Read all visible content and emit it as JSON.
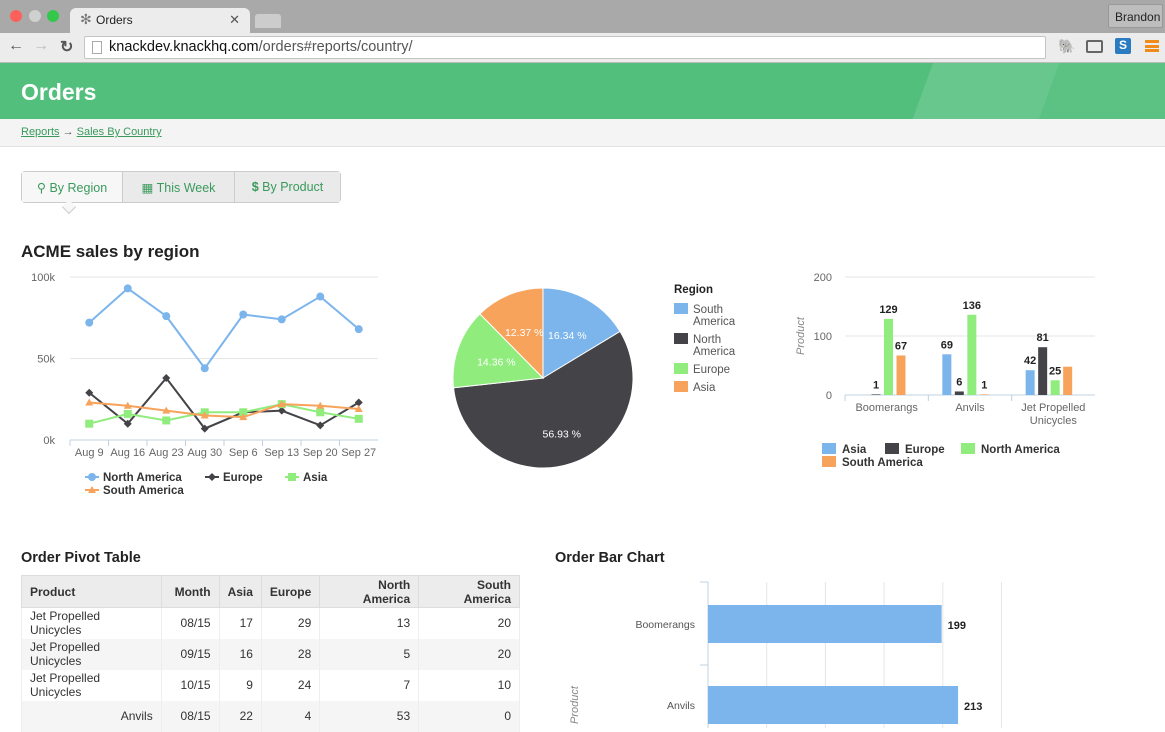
{
  "browser": {
    "tab_title": "Orders",
    "user": "Brandon",
    "url_host": "knackdev.knackhq.com",
    "url_path": "/orders#reports/country/"
  },
  "page": {
    "title": "Orders"
  },
  "breadcrumb": {
    "items": [
      "Reports",
      "Sales By Country"
    ],
    "separator": "→"
  },
  "view_tabs": [
    {
      "label": "By Region",
      "icon": "map-marker-icon",
      "active": true
    },
    {
      "label": "This Week",
      "icon": "calendar-icon"
    },
    {
      "label": "By Product",
      "icon": "dollar-icon"
    }
  ],
  "section1": {
    "title": "ACME sales by region"
  },
  "section2": {
    "pivot_title": "Order Pivot Table",
    "bar_title": "Order Bar Chart"
  },
  "colors": {
    "north_america": "#7cb5ec",
    "europe": "#434348",
    "asia": "#90ed7d",
    "south_america": "#f7a35c",
    "brand": "#52bf7d"
  },
  "chart_data": [
    {
      "type": "line",
      "categories": [
        "Aug 9",
        "Aug 16",
        "Aug 23",
        "Aug 30",
        "Sep 6",
        "Sep 13",
        "Sep 20",
        "Sep 27"
      ],
      "yticks": [
        "0k",
        "50k",
        "100k"
      ],
      "ylim": [
        0,
        100000
      ],
      "grid": true,
      "legend": "bottom",
      "series": [
        {
          "name": "North America",
          "color": "#7cb5ec",
          "marker": "circle",
          "values": [
            72000,
            93000,
            76000,
            44000,
            77000,
            74000,
            88000,
            68000
          ]
        },
        {
          "name": "Europe",
          "color": "#434348",
          "marker": "diamond",
          "values": [
            29000,
            10000,
            38000,
            7000,
            17000,
            18000,
            9000,
            23000
          ]
        },
        {
          "name": "Asia",
          "color": "#90ed7d",
          "marker": "square",
          "values": [
            10000,
            16000,
            12000,
            17000,
            17000,
            22000,
            17000,
            13000
          ]
        },
        {
          "name": "South America",
          "color": "#f7a35c",
          "marker": "triangle",
          "values": [
            23000,
            21000,
            18000,
            15000,
            14000,
            22000,
            21000,
            19000
          ]
        }
      ]
    },
    {
      "type": "pie",
      "legend_title": "Region",
      "legend": "right",
      "slices": [
        {
          "name": "South America",
          "value": 16.34,
          "label": "16.34 %",
          "color": "#7cb5ec"
        },
        {
          "name": "North America",
          "value": 56.93,
          "label": "56.93 %",
          "color": "#434348"
        },
        {
          "name": "Europe",
          "value": 14.36,
          "label": "14.36 %",
          "color": "#90ed7d"
        },
        {
          "name": "Asia",
          "value": 12.37,
          "label": "12.37 %",
          "color": "#f7a35c"
        }
      ]
    },
    {
      "type": "bar",
      "categories": [
        "Boomerangs",
        "Anvils",
        "Jet Propelled Unicycles"
      ],
      "ylabel": "Product",
      "ylim": [
        0,
        200
      ],
      "yticks": [
        "0",
        "100",
        "200"
      ],
      "legend": "bottom",
      "series": [
        {
          "name": "Asia",
          "color": "#7cb5ec",
          "values": [
            null,
            69,
            42
          ]
        },
        {
          "name": "Europe",
          "color": "#434348",
          "values": [
            1,
            6,
            81
          ]
        },
        {
          "name": "North America",
          "color": "#90ed7d",
          "values": [
            129,
            136,
            25
          ]
        },
        {
          "name": "South America",
          "color": "#f7a35c",
          "values": [
            67,
            1,
            48
          ],
          "labels": [
            "67",
            "1",
            ""
          ]
        }
      ]
    },
    {
      "type": "bar",
      "orientation": "horizontal",
      "categories": [
        "Boomerangs",
        "Anvils"
      ],
      "values": [
        199,
        213
      ],
      "xlabel": "Product",
      "xlim": [
        0,
        250
      ],
      "color": "#7cb5ec"
    }
  ],
  "pivot": {
    "columns": [
      "Product",
      "Month",
      "Asia",
      "Europe",
      "North America",
      "South America"
    ],
    "rows": [
      [
        "Jet Propelled Unicycles",
        "08/15",
        "17",
        "29",
        "13",
        "20"
      ],
      [
        "Jet Propelled Unicycles",
        "09/15",
        "16",
        "28",
        "5",
        "20"
      ],
      [
        "Jet Propelled Unicycles",
        "10/15",
        "9",
        "24",
        "7",
        "10"
      ],
      [
        "Anvils",
        "08/15",
        "22",
        "4",
        "53",
        "0"
      ]
    ]
  }
}
